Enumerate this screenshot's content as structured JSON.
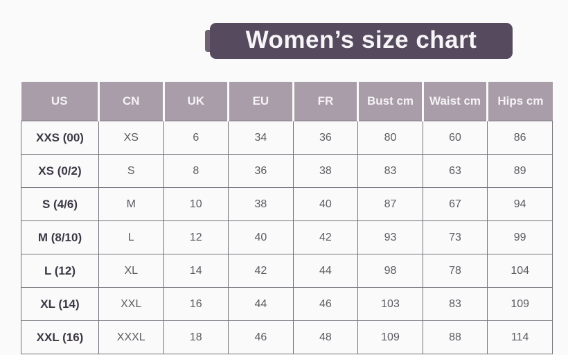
{
  "title": {
    "text": "Women’s size chart"
  },
  "colors": {
    "banner_bg": "#554a5e",
    "banner_tail": "#6d6173",
    "header_bg": "#a89da8",
    "header_text": "#f6f3f6",
    "border": "#74717a",
    "label_text": "#3b3844",
    "value_text": "#5c5a60",
    "page_bg": "#fbfafa"
  },
  "table": {
    "headers": [
      "US",
      "CN",
      "UK",
      "EU",
      "FR",
      "Bust cm",
      "Waist cm",
      "Hips cm"
    ],
    "rows": [
      [
        "XXS (00)",
        "XS",
        "6",
        "34",
        "36",
        "80",
        "60",
        "86"
      ],
      [
        "XS (0/2)",
        "S",
        "8",
        "36",
        "38",
        "83",
        "63",
        "89"
      ],
      [
        "S (4/6)",
        "M",
        "10",
        "38",
        "40",
        "87",
        "67",
        "94"
      ],
      [
        "M (8/10)",
        "L",
        "12",
        "40",
        "42",
        "93",
        "73",
        "99"
      ],
      [
        "L (12)",
        "XL",
        "14",
        "42",
        "44",
        "98",
        "78",
        "104"
      ],
      [
        "XL (14)",
        "XXL",
        "16",
        "44",
        "46",
        "103",
        "83",
        "109"
      ],
      [
        "XXL (16)",
        "XXXL",
        "18",
        "46",
        "48",
        "109",
        "88",
        "114"
      ]
    ]
  }
}
